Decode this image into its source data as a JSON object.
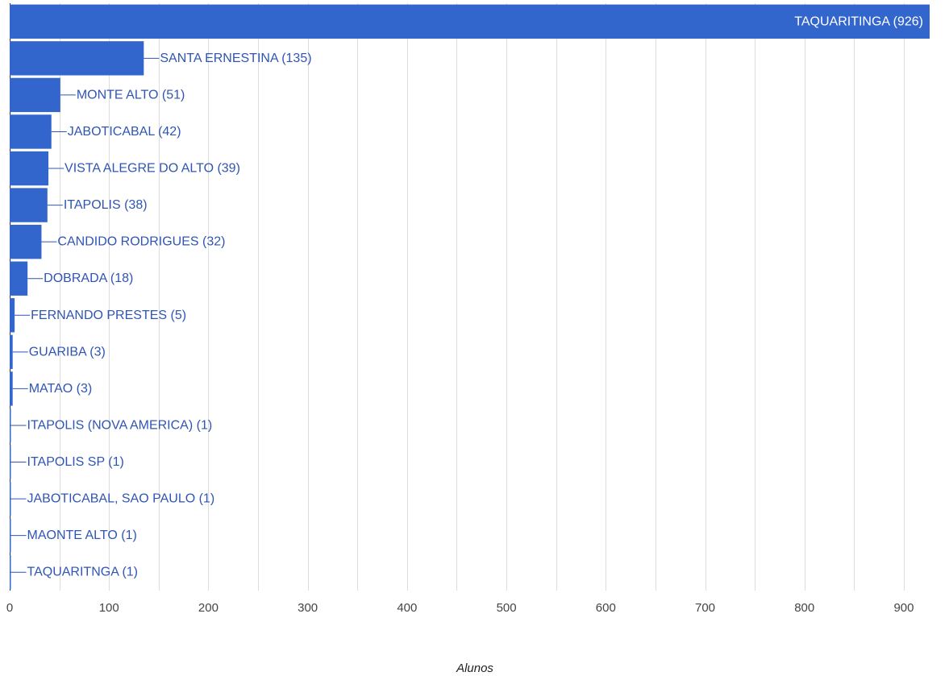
{
  "chart_data": {
    "type": "bar",
    "orientation": "horizontal",
    "categories": [
      "TAQUARITINGA",
      "SANTA ERNESTINA",
      "MONTE ALTO",
      "JABOTICABAL",
      "VISTA ALEGRE DO ALTO",
      "ITAPOLIS",
      "CANDIDO RODRIGUES",
      "DOBRADA",
      "FERNANDO PRESTES",
      "GUARIBA",
      "MATAO",
      "ITAPOLIS (NOVA AMERICA)",
      "ITAPOLIS SP",
      "JABOTICABAL, SAO PAULO",
      "MAONTE ALTO",
      "TAQUARITNGA"
    ],
    "values": [
      926,
      135,
      51,
      42,
      39,
      38,
      32,
      18,
      5,
      3,
      3,
      1,
      1,
      1,
      1,
      1
    ],
    "bar_labels": [
      "TAQUARITINGA (926)",
      "SANTA ERNESTINA (135)",
      "MONTE ALTO (51)",
      "JABOTICABAL (42)",
      "VISTA ALEGRE DO ALTO (39)",
      "ITAPOLIS (38)",
      "CANDIDO RODRIGUES (32)",
      "DOBRADA (18)",
      "FERNANDO PRESTES (5)",
      "GUARIBA (3)",
      "MATAO (3)",
      "ITAPOLIS (NOVA AMERICA) (1)",
      "ITAPOLIS SP (1)",
      "JABOTICABAL, SAO PAULO (1)",
      "MAONTE ALTO (1)",
      "TAQUARITNGA (1)"
    ],
    "x_ticks": [
      0,
      100,
      200,
      300,
      400,
      500,
      600,
      700,
      800,
      900
    ],
    "x_tick_labels": [
      "0",
      "100",
      "200",
      "300",
      "400",
      "500",
      "600",
      "700",
      "800",
      "900"
    ],
    "xlim": [
      0,
      926
    ],
    "minor_grid_step": 50,
    "xlabel": "Alunos",
    "ylabel": "",
    "title": "",
    "grid": true,
    "legend": "none",
    "bar_color": "#3366cc",
    "label_color": "#2f55b4",
    "grid_color": "#dddddd"
  }
}
